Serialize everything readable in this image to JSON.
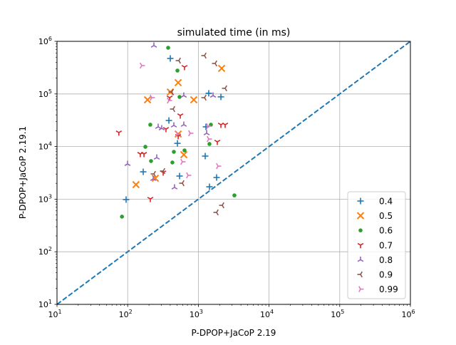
{
  "chart_data": {
    "type": "scatter",
    "title": "simulated time (in ms)",
    "xlabel": "P-DPOP+JaCoP 2.19",
    "ylabel": "P-DPOP+JaCoP 2.19.1",
    "xscale": "log",
    "yscale": "log",
    "xlim": [
      10,
      1000000
    ],
    "ylim": [
      10,
      1000000
    ],
    "tick_base": "10",
    "xtick_exponents": [
      "1",
      "2",
      "3",
      "4",
      "5",
      "6"
    ],
    "ytick_exponents": [
      "1",
      "2",
      "3",
      "4",
      "5",
      "6"
    ],
    "grid": true,
    "legend_position": "lower-right",
    "reference_line": {
      "from": [
        10,
        10
      ],
      "to": [
        1000000,
        1000000
      ],
      "style": "dashed",
      "color": "#1f77b4"
    },
    "series": [
      {
        "name": "0.4",
        "marker": "plus",
        "color": "#1f77b4",
        "points": [
          [
            401,
            473000
          ],
          [
            1403,
            103000
          ],
          [
            2085,
            88000
          ],
          [
            383,
            31300
          ],
          [
            1280,
            23700
          ],
          [
            506,
            11500
          ],
          [
            1250,
            6580
          ],
          [
            166,
            3310
          ],
          [
            542,
            2750
          ],
          [
            1811,
            2580
          ],
          [
            1436,
            1720
          ],
          [
            95,
            982
          ]
        ]
      },
      {
        "name": "0.5",
        "marker": "x",
        "color": "#ff7f0e",
        "points": [
          [
            2133,
            306000
          ],
          [
            518,
            164000
          ],
          [
            401,
            109000
          ],
          [
            191,
            77400
          ],
          [
            861,
            77400
          ],
          [
            518,
            17300
          ],
          [
            623,
            7010
          ],
          [
            246,
            2500
          ],
          [
            131,
            1890
          ]
        ]
      },
      {
        "name": "0.6",
        "marker": "dot",
        "color": "#2ca02c",
        "points": [
          [
            374,
            755000
          ],
          [
            506,
            278000
          ],
          [
            542,
            87700
          ],
          [
            209,
            26000
          ],
          [
            1504,
            26000
          ],
          [
            1436,
            11200
          ],
          [
            178,
            9880
          ],
          [
            450,
            7940
          ],
          [
            637,
            8450
          ],
          [
            214,
            5300
          ],
          [
            429,
            4980
          ],
          [
            3236,
            1180
          ],
          [
            83,
            465
          ]
        ]
      },
      {
        "name": "0.7",
        "marker": "tri_down",
        "color": "#d62728",
        "points": [
          [
            637,
            325000
          ],
          [
            392,
            85100
          ],
          [
            555,
            39000
          ],
          [
            2085,
            26000
          ],
          [
            2395,
            26000
          ],
          [
            75,
            18500
          ],
          [
            348,
            21500
          ],
          [
            518,
            15800
          ],
          [
            1855,
            12300
          ],
          [
            151,
            7230
          ],
          [
            170,
            7230
          ],
          [
            318,
            3210
          ],
          [
            209,
            1010
          ]
        ]
      },
      {
        "name": "0.8",
        "marker": "tri_up",
        "color": "#9467bd",
        "points": [
          [
            235,
            830000
          ],
          [
            622,
            93000
          ],
          [
            1615,
            93000
          ],
          [
            270,
            23700
          ],
          [
            303,
            22200
          ],
          [
            450,
            25200
          ],
          [
            622,
            26000
          ],
          [
            1310,
            17900
          ],
          [
            258,
            6180
          ],
          [
            99.6,
            4670
          ],
          [
            230,
            2430
          ],
          [
            460,
            1670
          ]
        ]
      },
      {
        "name": "0.9",
        "marker": "tri_left",
        "color": "#8c564b",
        "points": [
          [
            530,
            430000
          ],
          [
            1222,
            536000
          ],
          [
            1730,
            380000
          ],
          [
            2395,
            128000
          ],
          [
            420,
            109000
          ],
          [
            1222,
            85000
          ],
          [
            440,
            51600
          ],
          [
            235,
            3020
          ],
          [
            318,
            3420
          ],
          [
            594,
            2010
          ],
          [
            2180,
            764
          ],
          [
            1811,
            560
          ]
        ]
      },
      {
        "name": "0.99",
        "marker": "tri_right",
        "color": "#e377c2",
        "points": [
          [
            158,
            346000
          ],
          [
            219,
            85000
          ],
          [
            383,
            75000
          ],
          [
            1371,
            24400
          ],
          [
            506,
            17300
          ],
          [
            767,
            17900
          ],
          [
            1403,
            13900
          ],
          [
            594,
            5130
          ],
          [
            716,
            2840
          ],
          [
            1897,
            4250
          ]
        ]
      }
    ]
  }
}
